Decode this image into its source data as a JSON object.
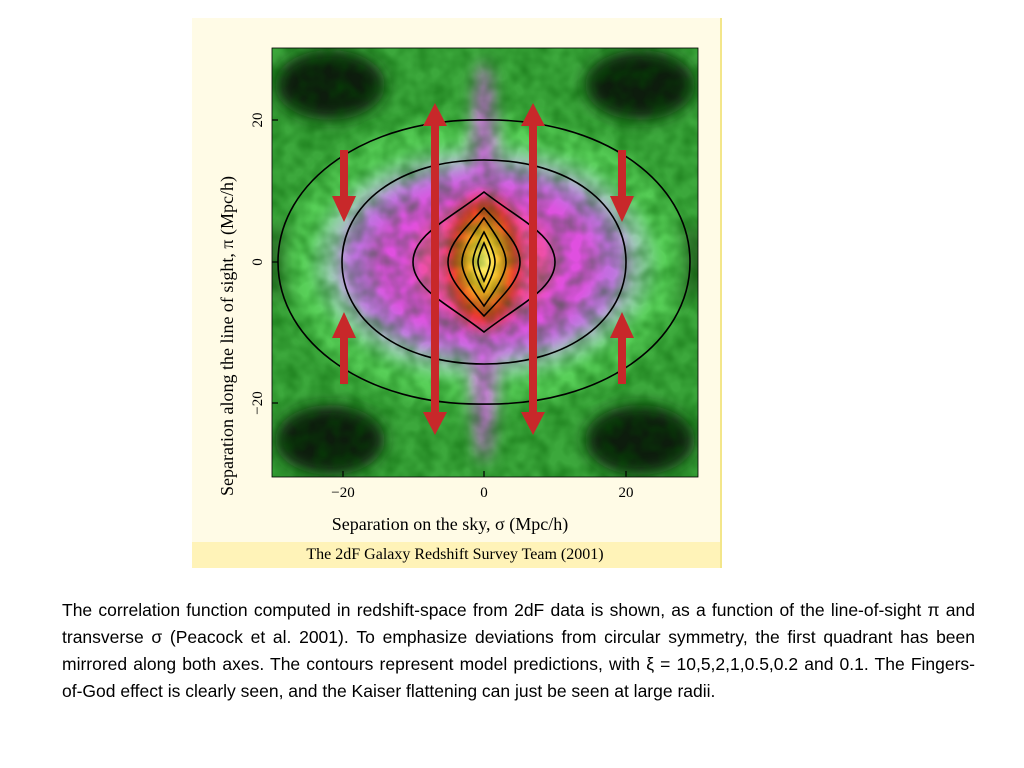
{
  "figure": {
    "y_axis_label": "Separation along the line of sight, π (Mpc/h)",
    "x_axis_label": "Separation on the sky, σ (Mpc/h)",
    "x_tick_labels": [
      "−20",
      "0",
      "20"
    ],
    "y_tick_labels": [
      "20",
      "0",
      "−20"
    ],
    "credit": "The 2dF Galaxy Redshift Survey Team (2001)"
  },
  "caption": "The correlation function computed in redshift-space from 2dF data is shown, as a function of the line-of-sight π and transverse σ (Peacock et al. 2001). To emphasize deviations from circular symmetry, the first quadrant has been mirrored along both axes. The contours represent model predictions, with ξ = 10,5,2,1,0.5,0.2 and 0.1. The Fingers-of-God effect is clearly seen, and the Kaiser flattening can just be seen at large radii."
}
